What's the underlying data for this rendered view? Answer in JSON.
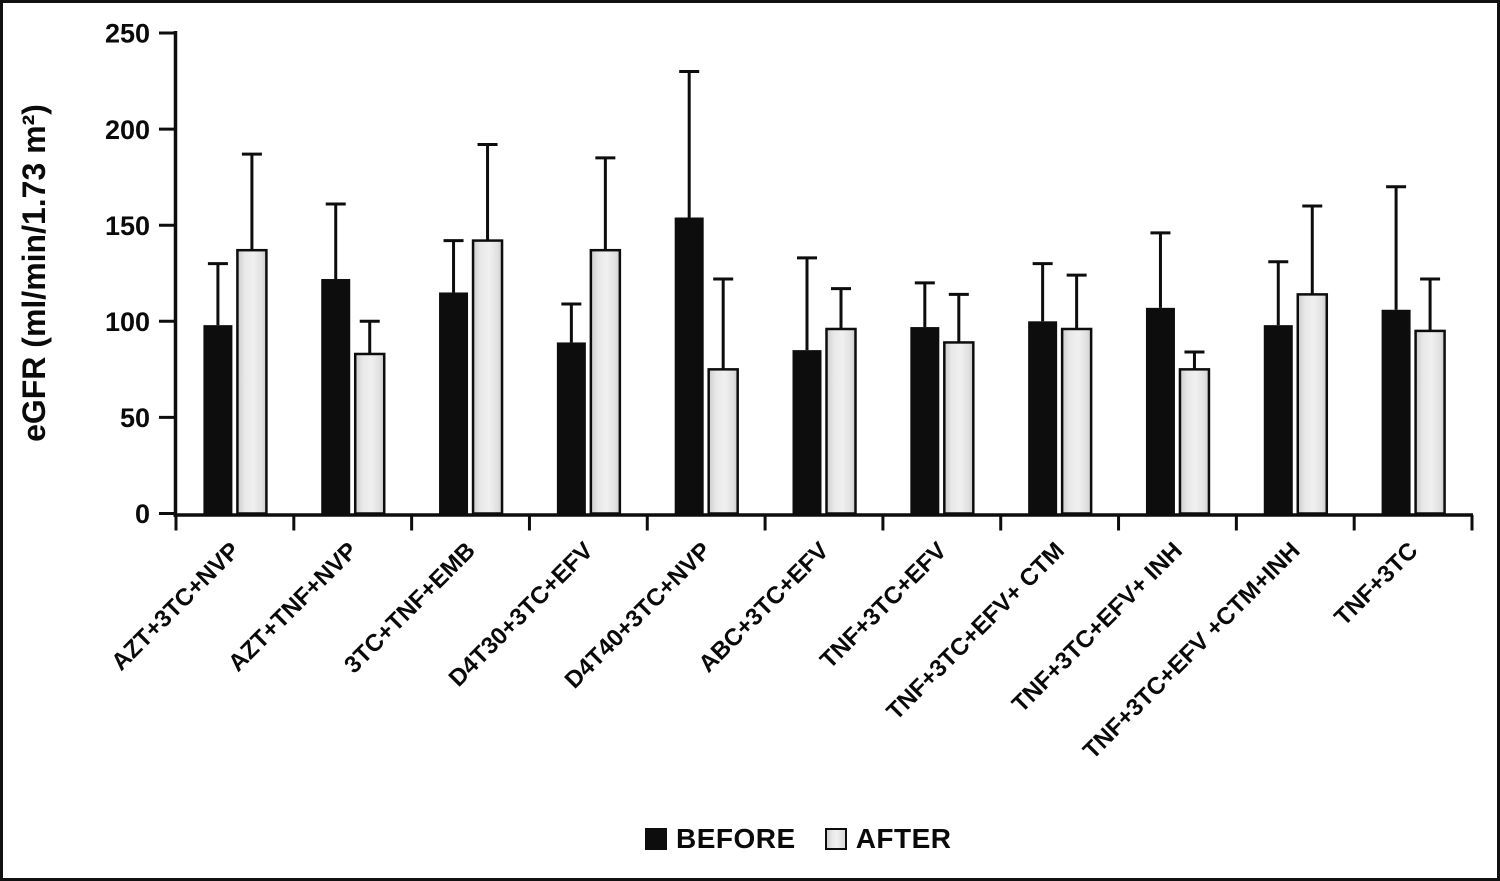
{
  "figure": {
    "background": "#ffffff",
    "border_color": "#111111"
  },
  "chart_data": {
    "type": "bar",
    "title": "",
    "xlabel": "",
    "ylabel": "eGFR (ml/min/1.73 m²)",
    "ylim": [
      0,
      250
    ],
    "yticks": [
      0,
      50,
      100,
      150,
      200,
      250
    ],
    "grid": false,
    "legend_position": "bottom-center",
    "error_bars": "upper-only",
    "categories": [
      "AZT+3TC+NVP",
      "AZT+TNF+NVP",
      "3TC+TNF+EMB",
      "D4T30+3TC+EFV",
      "D4T40+3TC+NVP",
      "ABC+3TC+EFV",
      "TNF+3TC+EFV",
      "TNF+3TC+EFV+ CTM",
      "TNF+3TC+EFV+ INH",
      "TNF+3TC+EFV +CTM+INH",
      "TNF+3TC"
    ],
    "series": [
      {
        "name": "BEFORE",
        "color": "#0d0d0d",
        "values": [
          98,
          122,
          115,
          89,
          154,
          85,
          97,
          100,
          107,
          98,
          106
        ],
        "error_up": [
          32,
          39,
          27,
          20,
          76,
          48,
          23,
          30,
          39,
          33,
          64
        ]
      },
      {
        "name": "AFTER",
        "color": "#e4e4e4",
        "border_color": "#0d0d0d",
        "values": [
          137,
          83,
          142,
          137,
          75,
          96,
          89,
          96,
          75,
          114,
          95
        ],
        "error_up": [
          50,
          17,
          50,
          48,
          47,
          21,
          25,
          28,
          9,
          46,
          27
        ]
      }
    ]
  },
  "legend": {
    "before_label": "BEFORE",
    "after_label": "AFTER"
  }
}
